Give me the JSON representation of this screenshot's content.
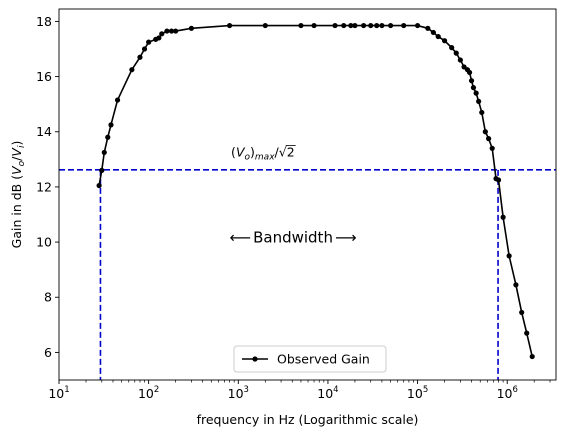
{
  "chart_data": {
    "type": "line",
    "x_scale": "log",
    "xlabel": "frequency in Hz (Logarithmic scale)",
    "ylabel_main": "Gain in dB (",
    "ylabel_math": "V",
    "ylabel_sub1": "o",
    "ylabel_slash": "/",
    "ylabel_math2": "V",
    "ylabel_sub2": "i",
    "ylabel_close": ")",
    "xlim": [
      10,
      3500000
    ],
    "ylim": [
      5.0,
      18.45
    ],
    "x_ticks": [
      {
        "value": 10,
        "base": "10",
        "exp": "1"
      },
      {
        "value": 100,
        "base": "10",
        "exp": "2"
      },
      {
        "value": 1000,
        "base": "10",
        "exp": "3"
      },
      {
        "value": 10000,
        "base": "10",
        "exp": "4"
      },
      {
        "value": 100000,
        "base": "10",
        "exp": "5"
      },
      {
        "value": 1000000,
        "base": "10",
        "exp": "6"
      }
    ],
    "y_ticks": [
      6,
      8,
      10,
      12,
      14,
      16,
      18
    ],
    "grid": false,
    "legend": {
      "position": "lower-center",
      "label": "Observed Gain"
    },
    "series": [
      {
        "name": "Observed Gain",
        "color": "#000000",
        "marker": "circle",
        "points": [
          [
            28,
            12.05
          ],
          [
            30,
            12.6
          ],
          [
            32,
            13.25
          ],
          [
            35,
            13.8
          ],
          [
            38,
            14.25
          ],
          [
            45,
            15.15
          ],
          [
            65,
            16.25
          ],
          [
            80,
            16.7
          ],
          [
            90,
            17.0
          ],
          [
            100,
            17.25
          ],
          [
            120,
            17.35
          ],
          [
            130,
            17.4
          ],
          [
            140,
            17.55
          ],
          [
            160,
            17.65
          ],
          [
            180,
            17.65
          ],
          [
            200,
            17.65
          ],
          [
            300,
            17.75
          ],
          [
            800,
            17.85
          ],
          [
            2000,
            17.85
          ],
          [
            5000,
            17.85
          ],
          [
            7000,
            17.85
          ],
          [
            12000,
            17.85
          ],
          [
            15000,
            17.85
          ],
          [
            18000,
            17.85
          ],
          [
            20000,
            17.85
          ],
          [
            25000,
            17.85
          ],
          [
            30000,
            17.85
          ],
          [
            35000,
            17.85
          ],
          [
            40000,
            17.85
          ],
          [
            50000,
            17.85
          ],
          [
            70000,
            17.85
          ],
          [
            100000,
            17.85
          ],
          [
            130000,
            17.75
          ],
          [
            150000,
            17.6
          ],
          [
            170000,
            17.45
          ],
          [
            200000,
            17.3
          ],
          [
            240000,
            17.05
          ],
          [
            270000,
            16.85
          ],
          [
            300000,
            16.6
          ],
          [
            330000,
            16.35
          ],
          [
            360000,
            16.25
          ],
          [
            380000,
            16.15
          ],
          [
            400000,
            15.85
          ],
          [
            420000,
            15.6
          ],
          [
            450000,
            15.4
          ],
          [
            480000,
            15.1
          ],
          [
            520000,
            14.7
          ],
          [
            570000,
            14.0
          ],
          [
            620000,
            13.75
          ],
          [
            680000,
            13.4
          ],
          [
            750000,
            12.3
          ],
          [
            800000,
            12.25
          ],
          [
            900000,
            10.9
          ],
          [
            1050000,
            9.5
          ],
          [
            1250000,
            8.45
          ],
          [
            1450000,
            7.45
          ],
          [
            1650000,
            6.7
          ],
          [
            1900000,
            5.85
          ]
        ]
      }
    ],
    "reference_lines": {
      "color": "#0000cc",
      "horizontal_y": 12.62,
      "vertical_x": [
        29,
        790000
      ]
    },
    "annotations": {
      "half_power": {
        "paren_open": "(",
        "v": "V",
        "o": "o",
        "paren_close": ")",
        "max": "max",
        "slash": "/",
        "sqrt": "√",
        "two": "2",
        "x": 3000,
        "y": 13.1
      },
      "bandwidth": {
        "arrow_left": "⟵",
        "text": "Bandwidth",
        "arrow_right": "⟶",
        "x": 14000,
        "y": 10.2
      }
    }
  }
}
